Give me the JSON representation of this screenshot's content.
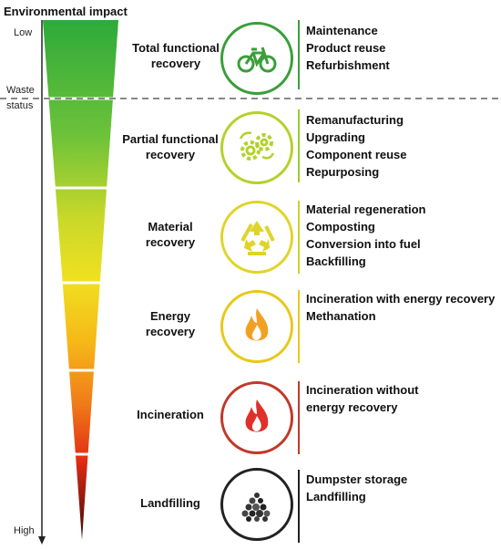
{
  "title": "Environmental impact",
  "axis": {
    "low": "Low",
    "high": "High",
    "waste_status_line1": "Waste",
    "waste_status_line2": "status"
  },
  "colors": {
    "green": "#3a9e3a",
    "light_green": "#9ccc2a",
    "yellow_green": "#c8d42a",
    "yellow": "#e8c81a",
    "red": "#c0392b",
    "black": "#222222"
  },
  "stages": [
    {
      "label_line1": "Total functional",
      "label_line2": "recovery",
      "icon": "bicycle-icon",
      "actions": [
        "Maintenance",
        "Product reuse",
        "Refurbishment"
      ]
    },
    {
      "label_line1": "Partial functional",
      "label_line2": "recovery",
      "icon": "gears-icon",
      "actions": [
        "Remanufacturing",
        "Upgrading",
        "Component reuse",
        "Repurposing"
      ]
    },
    {
      "label_line1": "Material",
      "label_line2": "recovery",
      "icon": "recycle-icon",
      "actions": [
        "Material regeneration",
        "Composting",
        "Conversion into fuel",
        "Backfilling"
      ]
    },
    {
      "label_line1": "Energy",
      "label_line2": "recovery",
      "icon": "flame-icon",
      "actions": [
        "Incineration with energy recovery",
        "Methanation"
      ]
    },
    {
      "label_line1": "Incineration",
      "label_line2": "",
      "icon": "fire-icon",
      "actions": [
        "Incineration without",
        "energy recovery"
      ]
    },
    {
      "label_line1": "Landfilling",
      "label_line2": "",
      "icon": "rubble-icon",
      "actions": [
        "Dumpster storage",
        "Landfilling"
      ]
    }
  ]
}
